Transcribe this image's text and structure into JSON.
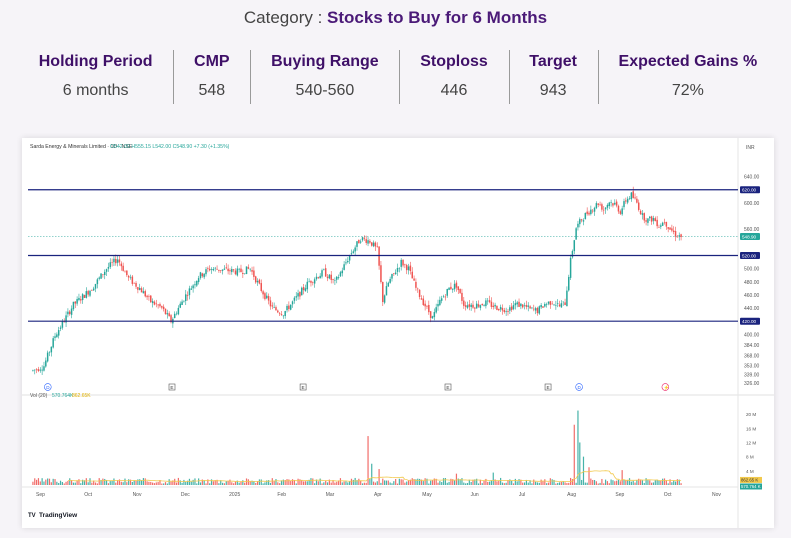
{
  "header": {
    "prefix": "Category : ",
    "value": "Stocks to Buy for 6 Months"
  },
  "summary": [
    {
      "label": "Holding Period",
      "value": "6 months"
    },
    {
      "label": "CMP",
      "value": "548"
    },
    {
      "label": "Buying Range",
      "value": "540-560"
    },
    {
      "label": "Stoploss",
      "value": "446"
    },
    {
      "label": "Target",
      "value": "943"
    },
    {
      "label": "Expected Gains %",
      "value": "72%"
    }
  ],
  "colors": {
    "accent": "#3f1068",
    "up": "#26a69a",
    "down": "#ef5350",
    "level_line": "#1a237e",
    "volume_ma": "#f2c94c"
  },
  "chart_data": {
    "type": "candlestick",
    "title": "Sarda Energy & Minerals Limited · 1D · NSE",
    "ohlc_readout": "O542.00 H555.15 L542.00 C548.90 +7.30 (+1.35%)",
    "currency": "INR",
    "y_ticks": [
      640,
      600,
      560,
      520,
      500,
      480,
      460,
      440,
      420,
      400,
      384,
      368,
      353,
      339,
      326
    ],
    "y_tick_labels": [
      "640.00",
      "600.00",
      "560.00",
      "520.00",
      "500.00",
      "480.00",
      "460.00",
      "440.00",
      "420.00",
      "400.00",
      "384.00",
      "368.00",
      "353.00",
      "339.00",
      "326.00"
    ],
    "horizontal_levels": [
      {
        "value": 620,
        "label": "620.00"
      },
      {
        "value": 520,
        "label": "520.00"
      },
      {
        "value": 420,
        "label": "420.00"
      }
    ],
    "last_price": {
      "value": 548.9,
      "label": "548.90"
    },
    "x_labels": [
      "Sep",
      "Oct",
      "Nov",
      "Dec",
      "2025",
      "Feb",
      "Mar",
      "Apr",
      "May",
      "Jun",
      "Jul",
      "Aug",
      "Sep",
      "Oct",
      "Nov"
    ],
    "price_anchors": [
      [
        0,
        345
      ],
      [
        6,
        352
      ],
      [
        12,
        398
      ],
      [
        22,
        445
      ],
      [
        32,
        470
      ],
      [
        40,
        500
      ],
      [
        46,
        515
      ],
      [
        52,
        485
      ],
      [
        58,
        470
      ],
      [
        64,
        450
      ],
      [
        70,
        440
      ],
      [
        75,
        420
      ],
      [
        82,
        455
      ],
      [
        90,
        488
      ],
      [
        96,
        500
      ],
      [
        104,
        498
      ],
      [
        112,
        495
      ],
      [
        118,
        500
      ],
      [
        124,
        468
      ],
      [
        130,
        440
      ],
      [
        136,
        432
      ],
      [
        142,
        452
      ],
      [
        150,
        480
      ],
      [
        158,
        495
      ],
      [
        164,
        478
      ],
      [
        172,
        520
      ],
      [
        178,
        546
      ],
      [
        183,
        542
      ],
      [
        187,
        528
      ],
      [
        190,
        452
      ],
      [
        193,
        478
      ],
      [
        196,
        492
      ],
      [
        200,
        510
      ],
      [
        204,
        500
      ],
      [
        208,
        470
      ],
      [
        213,
        444
      ],
      [
        217,
        425
      ],
      [
        221,
        450
      ],
      [
        226,
        470
      ],
      [
        230,
        475
      ],
      [
        234,
        446
      ],
      [
        240,
        444
      ],
      [
        246,
        448
      ],
      [
        252,
        441
      ],
      [
        258,
        438
      ],
      [
        262,
        446
      ],
      [
        266,
        444
      ],
      [
        270,
        438
      ],
      [
        274,
        436
      ],
      [
        278,
        446
      ],
      [
        282,
        450
      ],
      [
        286,
        443
      ],
      [
        289,
        448
      ],
      [
        292,
        512
      ],
      [
        295,
        562
      ],
      [
        298,
        575
      ],
      [
        301,
        585
      ],
      [
        304,
        592
      ],
      [
        307,
        600
      ],
      [
        310,
        590
      ],
      [
        313,
        602
      ],
      [
        316,
        598
      ],
      [
        319,
        587
      ],
      [
        322,
        604
      ],
      [
        325,
        612
      ],
      [
        328,
        600
      ],
      [
        331,
        580
      ],
      [
        334,
        574
      ],
      [
        337,
        576
      ],
      [
        340,
        566
      ],
      [
        343,
        572
      ],
      [
        346,
        561
      ],
      [
        349,
        552
      ],
      [
        352,
        548.9
      ]
    ],
    "volume_label": "Vol (20)",
    "volume_readout": [
      "570.764K",
      "862.65K"
    ],
    "volume_ticks": [
      20,
      16,
      12,
      8,
      4
    ],
    "volume_tick_labels": [
      "20 M",
      "16 M",
      "12 M",
      "8 M",
      "4 M"
    ],
    "volume_last": [
      {
        "label": "862.65 K"
      },
      {
        "label": "570.764 K"
      }
    ],
    "volume_spikes": [
      [
        182,
        13.8
      ],
      [
        184,
        6
      ],
      [
        188,
        4.5
      ],
      [
        296,
        21
      ],
      [
        294,
        17
      ],
      [
        297,
        12
      ],
      [
        299,
        8
      ],
      [
        302,
        5
      ],
      [
        320,
        4.2
      ],
      [
        250,
        3.5
      ],
      [
        230,
        3.2
      ]
    ],
    "event_markers": [
      {
        "pos": 0.02,
        "letter": "D"
      },
      {
        "pos": 0.2,
        "letter": "E"
      },
      {
        "pos": 0.39,
        "letter": "E"
      },
      {
        "pos": 0.6,
        "letter": "E"
      },
      {
        "pos": 0.745,
        "letter": "E"
      },
      {
        "pos": 0.79,
        "letter": "D"
      },
      {
        "pos": 0.915,
        "letter": "⚡"
      }
    ],
    "brand": "TradingView"
  }
}
